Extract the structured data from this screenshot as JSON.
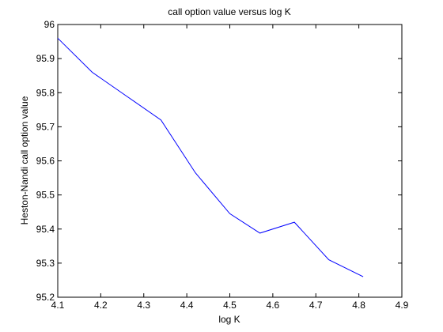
{
  "chart_data": {
    "type": "line",
    "title": "call option value versus log K",
    "xlabel": "log K",
    "ylabel": "Heston-Nandi call option value",
    "xlim": [
      4.1,
      4.9
    ],
    "ylim": [
      95.2,
      96.0
    ],
    "x_ticks": [
      "4.1",
      "4.2",
      "4.3",
      "4.4",
      "4.5",
      "4.6",
      "4.7",
      "4.8",
      "4.9"
    ],
    "y_ticks": [
      "95.2",
      "95.3",
      "95.4",
      "95.5",
      "95.6",
      "95.7",
      "95.8",
      "95.9",
      "96"
    ],
    "grid": false,
    "legend": "none",
    "series": [
      {
        "color": "#0000ff",
        "x": [
          4.1,
          4.18,
          4.26,
          4.34,
          4.42,
          4.5,
          4.57,
          4.65,
          4.73,
          4.81
        ],
        "y": [
          95.96,
          95.86,
          95.79,
          95.72,
          95.565,
          95.445,
          95.388,
          95.42,
          95.31,
          95.26
        ]
      }
    ]
  }
}
